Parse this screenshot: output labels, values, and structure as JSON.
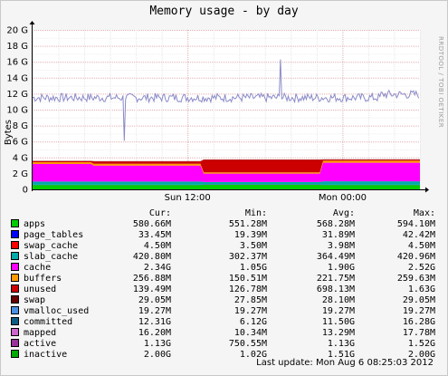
{
  "title": "Memory usage - by day",
  "watermark": "RRDTOOL / TOBI OETIKER",
  "chart_data": {
    "type": "area",
    "ylabel": "Bytes",
    "yticks": [
      "0",
      "2 G",
      "4 G",
      "6 G",
      "8 G",
      "10 G",
      "12 G",
      "14 G",
      "16 G",
      "18 G",
      "20 G"
    ],
    "ylim": [
      0,
      20
    ],
    "xticks": [
      "Sun 12:00",
      "Mon 00:00"
    ],
    "grid": true,
    "x_range_hours": [
      0,
      30
    ],
    "xtick_hours": [
      12,
      24
    ],
    "stacked_series": [
      {
        "name": "apps",
        "color": "#00cc00",
        "segments": [
          [
            0,
            0.55
          ],
          [
            13.2,
            0.57
          ],
          [
            22.5,
            0.55
          ]
        ]
      },
      {
        "name": "page_tables",
        "color": "#0000ff",
        "segments": [
          [
            0,
            0.03
          ]
        ]
      },
      {
        "name": "swap_cache",
        "color": "#ff0000",
        "segments": [
          [
            0,
            0.005
          ]
        ]
      },
      {
        "name": "slab_cache",
        "color": "#00aaaa",
        "segments": [
          [
            0,
            0.4
          ],
          [
            13.2,
            0.32
          ],
          [
            22.5,
            0.42
          ]
        ]
      },
      {
        "name": "cache",
        "color": "#ff00ff",
        "segments": [
          [
            0,
            2.2
          ],
          [
            4.6,
            2.0
          ],
          [
            13.2,
            1.05
          ],
          [
            22.5,
            2.34
          ]
        ]
      },
      {
        "name": "buffers",
        "color": "#ff9900",
        "segments": [
          [
            0,
            0.22
          ],
          [
            13.2,
            0.15
          ],
          [
            22.5,
            0.25
          ]
        ]
      },
      {
        "name": "unused",
        "color": "#cc0000",
        "segments": [
          [
            0,
            0.15
          ],
          [
            4.6,
            0.3
          ],
          [
            13.2,
            1.6
          ],
          [
            22.5,
            0.14
          ]
        ]
      },
      {
        "name": "swap",
        "color": "#660000",
        "segments": [
          [
            0,
            0.03
          ]
        ]
      }
    ],
    "line_series": [
      {
        "name": "committed",
        "color": "#8a8ac8",
        "baseline": 11.5,
        "spikes": [
          [
            7.1,
            6.1
          ],
          [
            19.2,
            16.3
          ]
        ]
      }
    ]
  },
  "legend": {
    "headers": [
      "Cur:",
      "Min:",
      "Avg:",
      "Max:"
    ],
    "rows": [
      {
        "name": "apps",
        "color": "#00cc00",
        "cur": "580.66M",
        "min": "551.28M",
        "avg": "568.28M",
        "max": "594.10M"
      },
      {
        "name": "page_tables",
        "color": "#0000ff",
        "cur": "33.45M",
        "min": "19.39M",
        "avg": "31.89M",
        "max": "42.42M"
      },
      {
        "name": "swap_cache",
        "color": "#ff0000",
        "cur": "4.50M",
        "min": "3.50M",
        "avg": "3.98M",
        "max": "4.50M"
      },
      {
        "name": "slab_cache",
        "color": "#00aaaa",
        "cur": "420.80M",
        "min": "302.37M",
        "avg": "364.49M",
        "max": "420.96M"
      },
      {
        "name": "cache",
        "color": "#ff00ff",
        "cur": "2.34G",
        "min": "1.05G",
        "avg": "1.90G",
        "max": "2.52G"
      },
      {
        "name": "buffers",
        "color": "#ff9900",
        "cur": "256.88M",
        "min": "150.51M",
        "avg": "221.75M",
        "max": "259.63M"
      },
      {
        "name": "unused",
        "color": "#cc0000",
        "cur": "139.49M",
        "min": "126.78M",
        "avg": "698.13M",
        "max": "1.63G"
      },
      {
        "name": "swap",
        "color": "#660000",
        "cur": "29.05M",
        "min": "27.85M",
        "avg": "28.10M",
        "max": "29.05M"
      },
      {
        "name": "vmalloc_used",
        "color": "#4a90e2",
        "cur": "19.27M",
        "min": "19.27M",
        "avg": "19.27M",
        "max": "19.27M"
      },
      {
        "name": "committed",
        "color": "#0d5c83",
        "cur": "12.31G",
        "min": "6.12G",
        "avg": "11.50G",
        "max": "16.28G"
      },
      {
        "name": "mapped",
        "color": "#cc66cc",
        "cur": "16.20M",
        "min": "10.34M",
        "avg": "13.29M",
        "max": "17.78M"
      },
      {
        "name": "active",
        "color": "#993399",
        "cur": "1.13G",
        "min": "750.55M",
        "avg": "1.13G",
        "max": "1.52G"
      },
      {
        "name": "inactive",
        "color": "#00aa00",
        "cur": "2.00G",
        "min": "1.02G",
        "avg": "1.51G",
        "max": "2.00G"
      }
    ]
  },
  "footer": "Last update:  Mon Aug  6 08:25:03 2012"
}
